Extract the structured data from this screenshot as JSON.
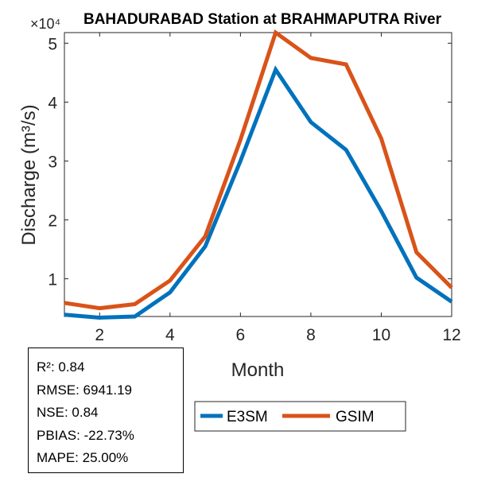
{
  "chart_data": {
    "type": "line",
    "title": "BAHADURABAD  Station at  BRAHMAPUTRA  River",
    "xlabel": "Month",
    "ylabel": "Discharge (m³/s)",
    "y_exponent": "×10⁴",
    "x": [
      1,
      2,
      3,
      4,
      5,
      6,
      7,
      8,
      9,
      10,
      11,
      12
    ],
    "xlim": [
      1,
      12
    ],
    "ylim": [
      0.36,
      5.18
    ],
    "xticks": [
      "2",
      "4",
      "6",
      "8",
      "10",
      "12"
    ],
    "yticks": [
      "1",
      "2",
      "3",
      "4",
      "5"
    ],
    "grid": false,
    "legend_position": "bottom",
    "series": [
      {
        "name": "E3SM",
        "color": "#0072BD",
        "values": [
          0.39,
          0.34,
          0.36,
          0.77,
          1.55,
          3.0,
          4.55,
          3.66,
          3.19,
          2.15,
          1.02,
          0.61
        ]
      },
      {
        "name": "GSIM",
        "color": "#D95319",
        "values": [
          0.59,
          0.5,
          0.57,
          0.97,
          1.72,
          3.36,
          5.18,
          4.75,
          4.64,
          3.38,
          1.45,
          0.85
        ]
      }
    ]
  },
  "stats": {
    "r2": "R²: 0.84",
    "rmse": "RMSE: 6941.19",
    "nse": "NSE: 0.84",
    "pbias": "PBIAS: -22.73%",
    "mape": "MAPE: 25.00%"
  }
}
